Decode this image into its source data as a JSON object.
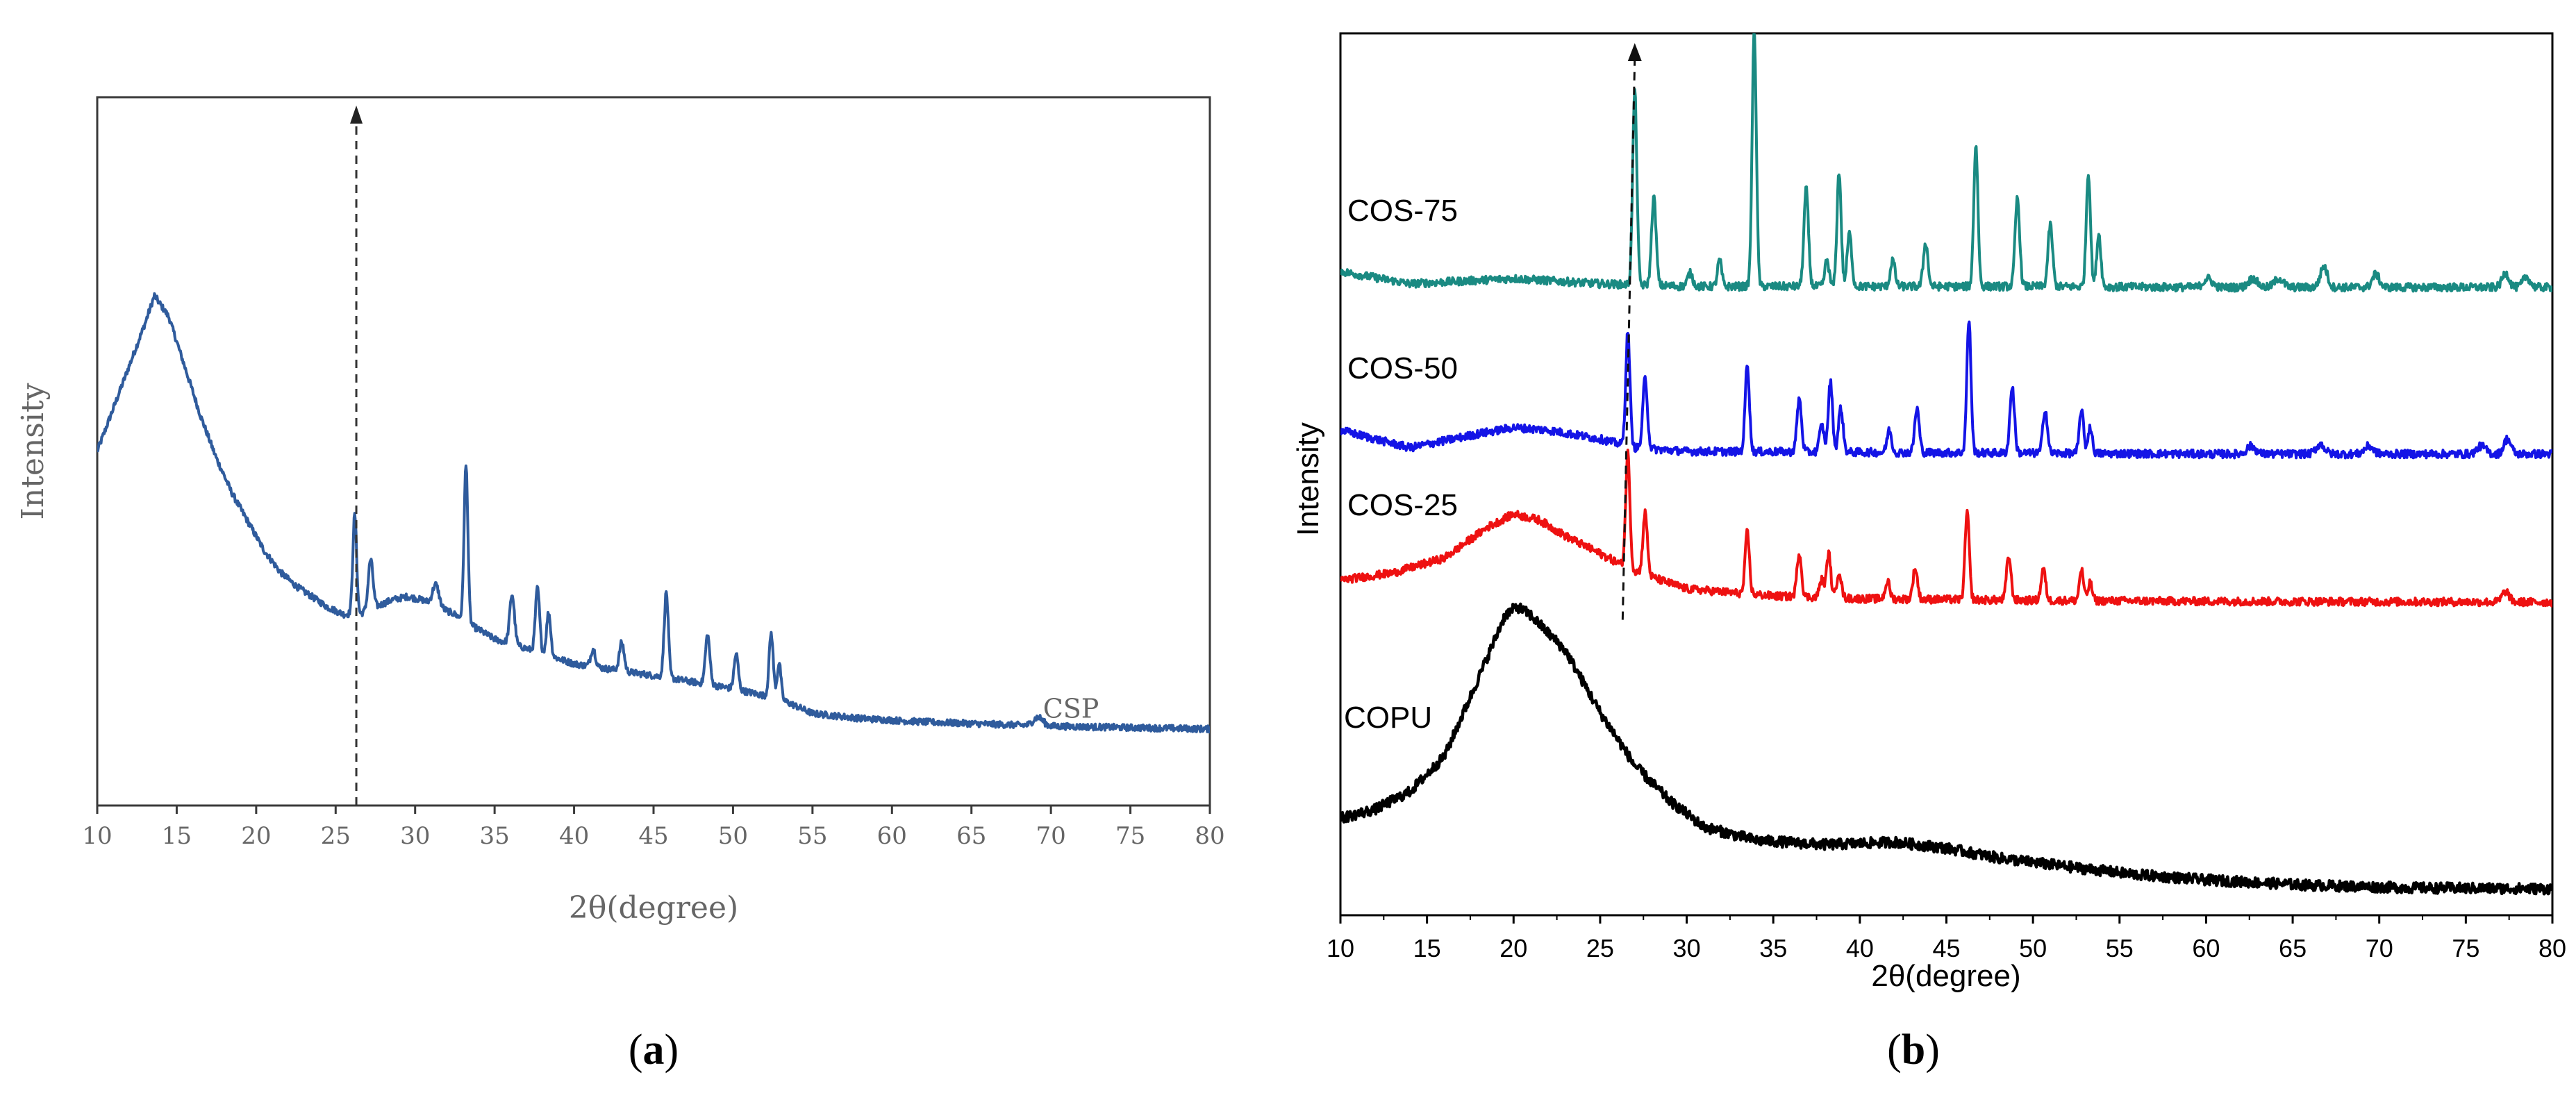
{
  "panel_labels": {
    "a": "a",
    "b": "b"
  },
  "colors": {
    "csp": "#2f5b9c",
    "cos75": "#1a8a82",
    "cos50": "#1414e6",
    "cos25": "#ee1111",
    "copu": "#000000",
    "frame_a": "#3a3a3a",
    "text_a": "#666666"
  },
  "chart_data": [
    {
      "id": "a",
      "type": "line",
      "xlabel": "2θ(degree)",
      "ylabel": "Intensity",
      "xlim": [
        10,
        80
      ],
      "ylim": [
        0,
        100
      ],
      "xticks": [
        10,
        15,
        20,
        25,
        30,
        35,
        40,
        45,
        50,
        55,
        60,
        65,
        70,
        75,
        80
      ],
      "arrow_x": 26.3,
      "series": [
        {
          "name": "CSP",
          "label": "CSP",
          "label_x": 69.5,
          "baseline": [
            [
              10,
              50
            ],
            [
              11,
              56
            ],
            [
              12,
              62
            ],
            [
              13,
              68
            ],
            [
              13.6,
              72
            ],
            [
              14.5,
              69
            ],
            [
              15.5,
              62
            ],
            [
              16.5,
              55
            ],
            [
              17.5,
              49
            ],
            [
              18.5,
              44
            ],
            [
              19.5,
              40
            ],
            [
              20.5,
              36
            ],
            [
              21.5,
              33
            ],
            [
              22.5,
              31
            ],
            [
              23.5,
              29.5
            ],
            [
              24.5,
              28
            ],
            [
              25.5,
              27
            ],
            [
              26.5,
              27
            ],
            [
              27.5,
              28
            ],
            [
              28.5,
              29
            ],
            [
              29.5,
              29.5
            ],
            [
              30.5,
              29
            ],
            [
              31.5,
              28
            ],
            [
              32.5,
              27
            ],
            [
              33.5,
              25.5
            ],
            [
              35,
              23.5
            ],
            [
              36.5,
              22.5
            ],
            [
              38,
              21.5
            ],
            [
              40,
              20
            ],
            [
              43,
              19
            ],
            [
              46,
              18
            ],
            [
              50,
              16.5
            ],
            [
              53,
              15
            ],
            [
              55,
              13
            ],
            [
              58,
              12.3
            ],
            [
              62,
              11.8
            ],
            [
              66,
              11.5
            ],
            [
              70,
              11.2
            ],
            [
              75,
              11
            ],
            [
              80,
              10.8
            ]
          ],
          "peaks": [
            [
              26.2,
              14,
              0.12
            ],
            [
              27.2,
              7,
              0.15
            ],
            [
              31.3,
              3,
              0.2
            ],
            [
              33.2,
              22,
              0.12
            ],
            [
              36.1,
              7,
              0.15
            ],
            [
              37.7,
              9,
              0.13
            ],
            [
              38.4,
              6,
              0.13
            ],
            [
              41.2,
              2.5,
              0.15
            ],
            [
              43.0,
              4,
              0.15
            ],
            [
              45.8,
              12,
              0.13
            ],
            [
              48.4,
              7,
              0.14
            ],
            [
              50.2,
              5,
              0.13
            ],
            [
              52.4,
              9,
              0.13
            ],
            [
              52.9,
              5,
              0.12
            ],
            [
              69.2,
              1.2,
              0.3
            ]
          ]
        }
      ]
    },
    {
      "id": "b",
      "type": "line",
      "xlabel": "2θ(degree)",
      "ylabel": "Intensity",
      "xlim": [
        10,
        80
      ],
      "ylim": [
        0,
        100
      ],
      "xticks": [
        10,
        15,
        20,
        25,
        30,
        35,
        40,
        45,
        50,
        55,
        60,
        65,
        70,
        75,
        80
      ],
      "arrow": {
        "x_start": 26.3,
        "x_end": 27.0
      },
      "series": [
        {
          "name": "COS-75",
          "label": "COS-75",
          "offset": 71,
          "baseline": [
            [
              10,
              2
            ],
            [
              14,
              0.6
            ],
            [
              20,
              1.2
            ],
            [
              25,
              0.6
            ],
            [
              30,
              0.3
            ],
            [
              40,
              0.3
            ],
            [
              50,
              0.3
            ],
            [
              60,
              0.2
            ],
            [
              80,
              0.2
            ]
          ],
          "peaks": [
            [
              27.0,
              22,
              0.12
            ],
            [
              28.1,
              10,
              0.13
            ],
            [
              30.2,
              1.5,
              0.15
            ],
            [
              31.9,
              3,
              0.12
            ],
            [
              33.9,
              29,
              0.12
            ],
            [
              36.9,
              11,
              0.13
            ],
            [
              38.1,
              3,
              0.12
            ],
            [
              38.8,
              13,
              0.12
            ],
            [
              39.4,
              6,
              0.13
            ],
            [
              41.9,
              3,
              0.13
            ],
            [
              43.8,
              5,
              0.13
            ],
            [
              46.7,
              16,
              0.12
            ],
            [
              49.1,
              10,
              0.13
            ],
            [
              51.0,
              7,
              0.13
            ],
            [
              53.2,
              13,
              0.12
            ],
            [
              53.8,
              6,
              0.12
            ],
            [
              60.1,
              1,
              0.25
            ],
            [
              62.7,
              1,
              0.25
            ],
            [
              64.2,
              1,
              0.25
            ],
            [
              66.8,
              2.4,
              0.2
            ],
            [
              69.8,
              1.5,
              0.2
            ],
            [
              77.3,
              1.6,
              0.2
            ],
            [
              78.5,
              1.2,
              0.2
            ]
          ]
        },
        {
          "name": "COS-50",
          "label": "COS-50",
          "offset": 52,
          "baseline": [
            [
              10,
              3
            ],
            [
              14,
              1
            ],
            [
              18,
              2.6
            ],
            [
              20,
              3.3
            ],
            [
              22,
              3
            ],
            [
              25,
              2
            ],
            [
              27,
              1
            ],
            [
              30,
              0.6
            ],
            [
              40,
              0.5
            ],
            [
              50,
              0.4
            ],
            [
              60,
              0.3
            ],
            [
              80,
              0.3
            ]
          ],
          "peaks": [
            [
              26.6,
              13,
              0.12
            ],
            [
              27.6,
              8,
              0.13
            ],
            [
              33.5,
              10,
              0.12
            ],
            [
              36.5,
              6,
              0.13
            ],
            [
              37.8,
              3,
              0.13
            ],
            [
              38.3,
              8,
              0.12
            ],
            [
              38.9,
              5,
              0.13
            ],
            [
              41.7,
              2.5,
              0.13
            ],
            [
              43.3,
              5,
              0.13
            ],
            [
              46.3,
              15,
              0.12
            ],
            [
              48.8,
              7.5,
              0.13
            ],
            [
              50.7,
              5,
              0.13
            ],
            [
              52.8,
              5,
              0.12
            ],
            [
              53.3,
              3,
              0.12
            ],
            [
              62.6,
              0.9,
              0.25
            ],
            [
              66.6,
              1.1,
              0.25
            ],
            [
              69.4,
              0.9,
              0.25
            ],
            [
              75.9,
              0.9,
              0.25
            ],
            [
              77.4,
              1.7,
              0.2
            ]
          ]
        },
        {
          "name": "COS-25",
          "label": "COS-25",
          "offset": 35,
          "baseline": [
            [
              10,
              3
            ],
            [
              13,
              3.8
            ],
            [
              16,
              5.5
            ],
            [
              18.5,
              9
            ],
            [
              20,
              10.5
            ],
            [
              21.5,
              9.8
            ],
            [
              23,
              8
            ],
            [
              25,
              6
            ],
            [
              27,
              4
            ],
            [
              30,
              2
            ],
            [
              35,
              1.2
            ],
            [
              40,
              0.9
            ],
            [
              50,
              0.7
            ],
            [
              60,
              0.6
            ],
            [
              80,
              0.5
            ]
          ],
          "peaks": [
            [
              26.6,
              13,
              0.12
            ],
            [
              27.6,
              7,
              0.13
            ],
            [
              33.5,
              7,
              0.12
            ],
            [
              36.5,
              5,
              0.13
            ],
            [
              37.8,
              2,
              0.13
            ],
            [
              38.2,
              5,
              0.12
            ],
            [
              38.8,
              3,
              0.13
            ],
            [
              41.6,
              2,
              0.13
            ],
            [
              43.2,
              3.5,
              0.13
            ],
            [
              46.2,
              10,
              0.12
            ],
            [
              48.6,
              5,
              0.13
            ],
            [
              50.6,
              3.5,
              0.13
            ],
            [
              52.8,
              3.5,
              0.12
            ],
            [
              53.3,
              2,
              0.12
            ],
            [
              77.3,
              1.2,
              0.2
            ]
          ]
        },
        {
          "name": "COPU",
          "label": "COPU",
          "offset": 3,
          "baseline": [
            [
              10,
              8
            ],
            [
              12,
              9
            ],
            [
              14,
              11
            ],
            [
              16,
              15
            ],
            [
              18,
              24
            ],
            [
              19.5,
              31
            ],
            [
              20.2,
              32
            ],
            [
              21,
              31
            ],
            [
              23,
              27
            ],
            [
              25,
              20
            ],
            [
              27,
              14
            ],
            [
              29,
              10
            ],
            [
              31,
              7
            ],
            [
              34,
              5.5
            ],
            [
              38,
              5
            ],
            [
              42,
              5.3
            ],
            [
              45,
              4.6
            ],
            [
              48,
              3.5
            ],
            [
              52,
              2.5
            ],
            [
              56,
              1.6
            ],
            [
              60,
              1
            ],
            [
              66,
              0.4
            ],
            [
              72,
              0.1
            ],
            [
              80,
              0
            ]
          ],
          "peaks": []
        }
      ]
    }
  ]
}
